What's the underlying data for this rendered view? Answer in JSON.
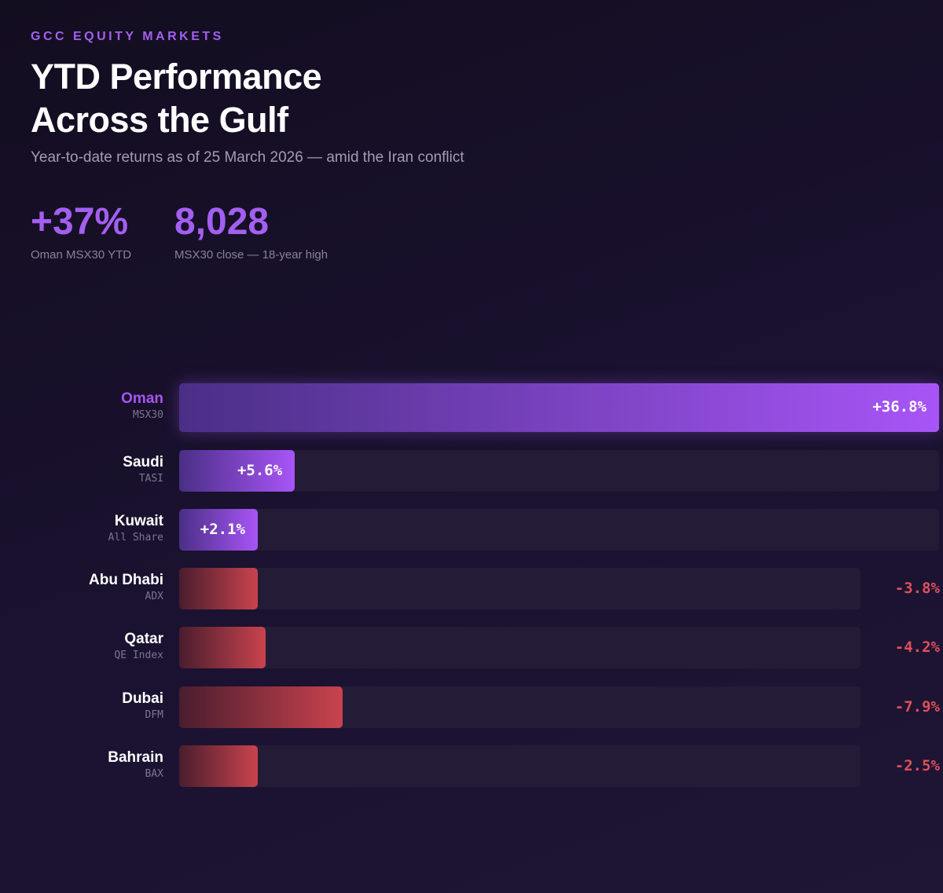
{
  "header": {
    "eyebrow": "GCC EQUITY MARKETS",
    "title": "YTD Performance Across the Gulf",
    "subtitle": "Year-to-date returns as of 25 March 2026 — amid the Iran conflict"
  },
  "kpis": [
    {
      "value": "+37%",
      "label": "Oman MSX30 YTD"
    },
    {
      "value": "8,028",
      "label": "MSX30 close — 18-year high"
    }
  ],
  "chart_data": {
    "type": "bar",
    "orientation": "horizontal",
    "categories": [
      "Oman",
      "Saudi",
      "Kuwait",
      "Abu Dhabi",
      "Qatar",
      "Dubai",
      "Bahrain"
    ],
    "sublabels": [
      "MSX30",
      "TASI",
      "All Share",
      "ADX",
      "QE Index",
      "DFM",
      "BAX"
    ],
    "values": [
      36.8,
      5.6,
      2.1,
      -3.8,
      -4.2,
      -7.9,
      -2.5
    ],
    "value_labels": [
      "+36.8%",
      "+5.6%",
      "+2.1%",
      "-3.8%",
      "-4.2%",
      "-7.9%",
      "-2.5%"
    ],
    "colors": {
      "positive": "#a855f7",
      "negative": "#c9434d"
    }
  }
}
